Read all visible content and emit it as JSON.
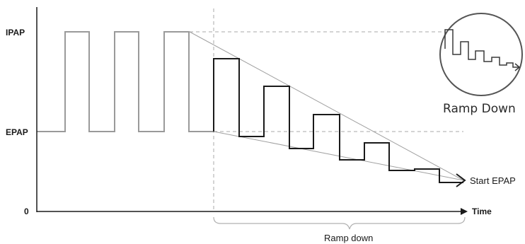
{
  "diagram": {
    "y_labels": {
      "ipap": "IPAP",
      "epap": "EPAP",
      "zero": "0"
    },
    "x_axis_label": "Time",
    "start_epap_label": "Start EPAP",
    "ramp_down_label": "Ramp down",
    "inset_label": "Ramp Down",
    "colors": {
      "pre_ramp_trace": "#9a9a9a",
      "ramp_trace": "#1a1a1a",
      "guide_lines": "#9a9a9a",
      "axes": "#1a1a1a",
      "brace": "#b0b0b0"
    }
  }
}
